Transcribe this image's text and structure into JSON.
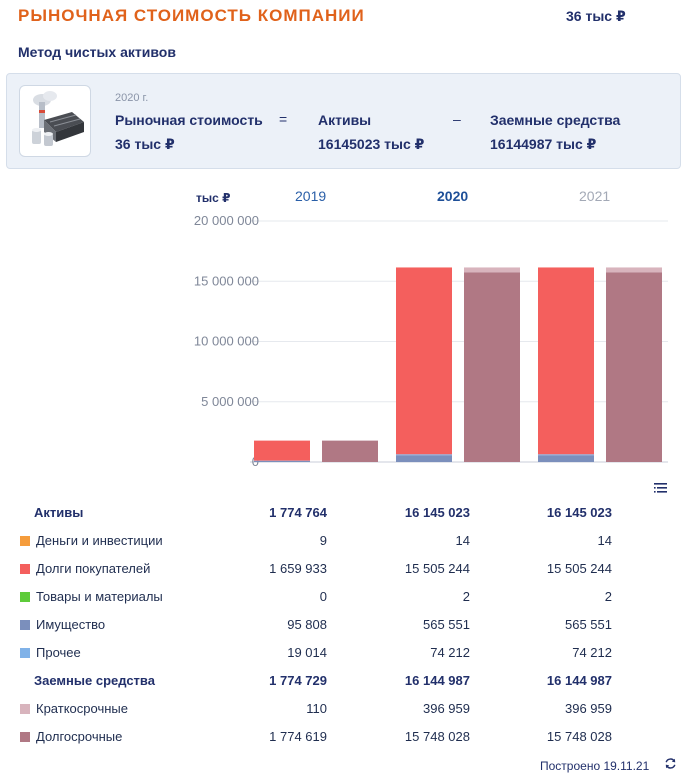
{
  "header": {
    "title": "РЫНОЧНАЯ СТОИМОСТЬ КОМПАНИИ",
    "value": "36 тыс ₽"
  },
  "method": "Метод чистых активов",
  "formula": {
    "year": "2020 г.",
    "market_label": "Рыночная стоимость",
    "market_value": "36 тыс ₽",
    "eq": "=",
    "assets_label": "Активы",
    "assets_value": "16145023 тыс ₽",
    "minus": "–",
    "debt_label": "Заемные средства",
    "debt_value": "16144987 тыс ₽"
  },
  "colors": {
    "money": "#f59c3c",
    "receivables": "#f45f5d",
    "goods": "#5ecb3a",
    "property": "#7b8fbc",
    "other": "#80b2e8",
    "short_term": "#d8b4bd",
    "long_term": "#b07884"
  },
  "chart_data": {
    "type": "bar",
    "unit_label": "тыс ₽",
    "categories": [
      "2019",
      "2020",
      "2021"
    ],
    "ylim": [
      0,
      20000000
    ],
    "yticks": [
      0,
      5000000,
      10000000,
      15000000,
      20000000
    ],
    "ytick_labels": [
      "0",
      "5 000 000",
      "10 000 000",
      "15 000 000",
      "20 000 000"
    ],
    "assets_series": [
      {
        "name": "Деньги и инвестиции",
        "values": [
          9,
          14,
          14
        ]
      },
      {
        "name": "Долги покупателей",
        "values": [
          1659933,
          15505244,
          15505244
        ]
      },
      {
        "name": "Товары и материалы",
        "values": [
          0,
          2,
          2
        ]
      },
      {
        "name": "Имущество",
        "values": [
          95808,
          565551,
          565551
        ]
      },
      {
        "name": "Прочее",
        "values": [
          19014,
          74212,
          74212
        ]
      }
    ],
    "debt_series": [
      {
        "name": "Краткосрочные",
        "values": [
          110,
          396959,
          396959
        ]
      },
      {
        "name": "Долгосрочные",
        "values": [
          1774619,
          15748028,
          15748028
        ]
      }
    ]
  },
  "table": {
    "rows": [
      {
        "kind": "sum",
        "name": "Активы",
        "v": [
          "1 774 764",
          "16 145 023",
          "16 145 023"
        ]
      },
      {
        "kind": "item",
        "name": "Деньги и инвестиции",
        "color": "money",
        "v": [
          "9",
          "14",
          "14"
        ]
      },
      {
        "kind": "item",
        "name": "Долги покупателей",
        "color": "receivables",
        "v": [
          "1 659 933",
          "15 505 244",
          "15 505 244"
        ]
      },
      {
        "kind": "item",
        "name": "Товары и материалы",
        "color": "goods",
        "v": [
          "0",
          "2",
          "2"
        ]
      },
      {
        "kind": "item",
        "name": "Имущество",
        "color": "property",
        "v": [
          "95 808",
          "565 551",
          "565 551"
        ]
      },
      {
        "kind": "item",
        "name": "Прочее",
        "color": "other",
        "v": [
          "19 014",
          "74 212",
          "74 212"
        ]
      },
      {
        "kind": "sum",
        "name": "Заемные средства",
        "v": [
          "1 774 729",
          "16 144 987",
          "16 144 987"
        ]
      },
      {
        "kind": "item",
        "name": "Краткосрочные",
        "color": "short_term",
        "v": [
          "110",
          "396 959",
          "396 959"
        ]
      },
      {
        "kind": "item",
        "name": "Долгосрочные",
        "color": "long_term",
        "v": [
          "1 774 619",
          "15 748 028",
          "15 748 028"
        ]
      }
    ]
  },
  "footer": "Построено 19.11.21",
  "icons": {
    "menu": "list-menu-icon",
    "refresh": "refresh-icon",
    "logo": "factory-icon"
  }
}
